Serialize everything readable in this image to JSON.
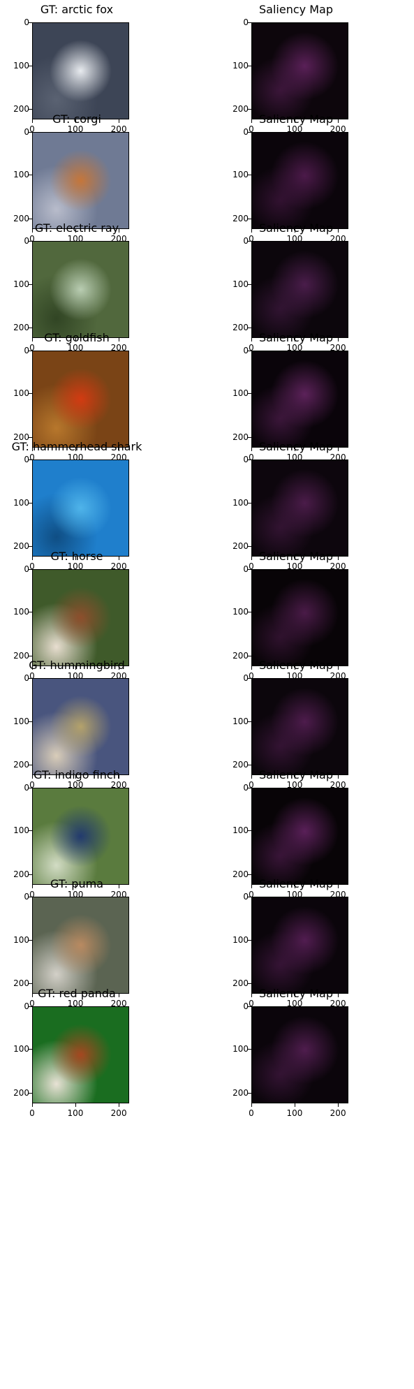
{
  "figure": {
    "saliency_title": "Saliency Map",
    "x_ticks": [
      "0",
      "100",
      "200"
    ],
    "y_ticks": [
      "0",
      "100",
      "200"
    ]
  },
  "rows": [
    {
      "gt_title": "GT: arctic fox",
      "image_subject": "arctic fox",
      "image_colors": {
        "bg": "#3d4556",
        "a": "#e8ebef",
        "b": "#5a6272"
      },
      "saliency_colors": {
        "bg": "#0d060c",
        "hot": "#5a2058"
      }
    },
    {
      "gt_title": "GT: corgi",
      "image_subject": "corgi",
      "image_colors": {
        "bg": "#6f7a94",
        "a": "#c5763a",
        "b": "#b8bccb"
      },
      "saliency_colors": {
        "bg": "#0b050b",
        "hot": "#4c1a4a"
      }
    },
    {
      "gt_title": "GT: electric ray",
      "image_subject": "electric ray",
      "image_colors": {
        "bg": "#51683d",
        "a": "#b9cdb2",
        "b": "#314524"
      },
      "saliency_colors": {
        "bg": "#0c060c",
        "hot": "#4a1d4b"
      }
    },
    {
      "gt_title": "GT: goldfish",
      "image_subject": "goldfish",
      "image_colors": {
        "bg": "#7a4416",
        "a": "#d23b12",
        "b": "#b7772c"
      },
      "saliency_colors": {
        "bg": "#0a040a",
        "hot": "#5c225a"
      }
    },
    {
      "gt_title": "GT: hammerhead shark",
      "image_subject": "hammerhead shark",
      "image_colors": {
        "bg": "#1f7fcc",
        "a": "#4fb4ea",
        "b": "#0f4e84"
      },
      "saliency_colors": {
        "bg": "#0d060d",
        "hot": "#4b1c4a"
      }
    },
    {
      "gt_title": "GT: horse",
      "image_subject": "horse",
      "image_colors": {
        "bg": "#3f5a2a",
        "a": "#8d4e2c",
        "b": "#e8ded0"
      },
      "saliency_colors": {
        "bg": "#080407",
        "hot": "#4a1b48"
      }
    },
    {
      "gt_title": "GT: hummingbird",
      "image_subject": "hummingbird",
      "image_colors": {
        "bg": "#49557e",
        "a": "#b4a26b",
        "b": "#d9cdb9"
      },
      "saliency_colors": {
        "bg": "#0c060c",
        "hot": "#4e1c4d"
      }
    },
    {
      "gt_title": "GT: indigo finch",
      "image_subject": "indigo finch",
      "image_colors": {
        "bg": "#5a7b3e",
        "a": "#223a6e",
        "b": "#d2dcc4"
      },
      "saliency_colors": {
        "bg": "#080407",
        "hot": "#5a2059"
      }
    },
    {
      "gt_title": "GT: puma",
      "image_subject": "puma",
      "image_colors": {
        "bg": "#5b6452",
        "a": "#b98a61",
        "b": "#d3d0c8"
      },
      "saliency_colors": {
        "bg": "#0b050b",
        "hot": "#521d51"
      }
    },
    {
      "gt_title": "GT: red panda",
      "image_subject": "red panda",
      "image_colors": {
        "bg": "#1a6d20",
        "a": "#a54720",
        "b": "#e8e2d5"
      },
      "saliency_colors": {
        "bg": "#0b050b",
        "hot": "#4f1d4e"
      }
    }
  ]
}
